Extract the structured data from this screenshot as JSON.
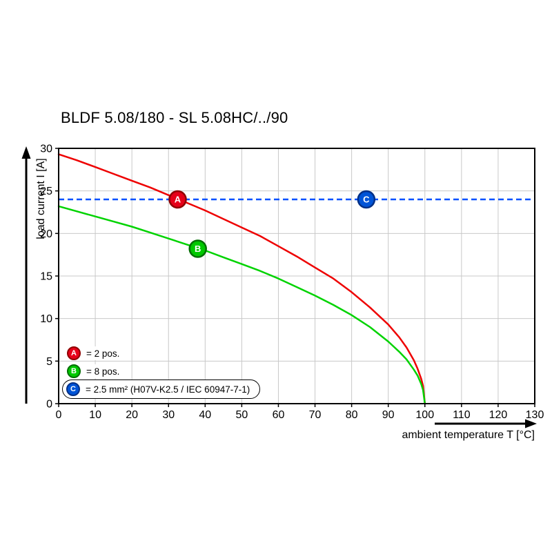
{
  "chart_data": {
    "type": "line",
    "title": "BLDF 5.08/180 - SL 5.08HC/../90",
    "xlabel": "ambient temperature T [°C]",
    "ylabel": "load current I [A]",
    "xlim": [
      0,
      130
    ],
    "ylim": [
      0,
      30
    ],
    "x_ticks": [
      0,
      10,
      20,
      30,
      40,
      50,
      60,
      70,
      80,
      90,
      100,
      110,
      120,
      130
    ],
    "y_ticks": [
      0,
      5,
      10,
      15,
      20,
      25,
      30
    ],
    "grid": true,
    "grid_color": "#c8c8c8",
    "axis_color": "#000000",
    "series": [
      {
        "id": "A",
        "label": "2 pos.",
        "kind": "curve",
        "color": "#ee0000",
        "points": [
          [
            0,
            29.3
          ],
          [
            5,
            28.6
          ],
          [
            10,
            27.8
          ],
          [
            15,
            27.0
          ],
          [
            20,
            26.2
          ],
          [
            25,
            25.4
          ],
          [
            30,
            24.5
          ],
          [
            35,
            23.6
          ],
          [
            40,
            22.7
          ],
          [
            45,
            21.7
          ],
          [
            50,
            20.7
          ],
          [
            55,
            19.7
          ],
          [
            60,
            18.5
          ],
          [
            65,
            17.3
          ],
          [
            70,
            16.0
          ],
          [
            75,
            14.7
          ],
          [
            80,
            13.1
          ],
          [
            85,
            11.3
          ],
          [
            90,
            9.3
          ],
          [
            93,
            7.8
          ],
          [
            95,
            6.6
          ],
          [
            97,
            5.1
          ],
          [
            98,
            4.1
          ],
          [
            99,
            2.9
          ],
          [
            99.5,
            2.1
          ],
          [
            100,
            0
          ]
        ],
        "marker": {
          "x": 32.5,
          "y": 24,
          "letter": "A",
          "fill": "#e60019",
          "stroke": "#8f0000"
        }
      },
      {
        "id": "B",
        "label": "8 pos.",
        "kind": "curve",
        "color": "#00d300",
        "points": [
          [
            0,
            23.2
          ],
          [
            5,
            22.6
          ],
          [
            10,
            22.0
          ],
          [
            15,
            21.4
          ],
          [
            20,
            20.8
          ],
          [
            25,
            20.1
          ],
          [
            30,
            19.4
          ],
          [
            35,
            18.7
          ],
          [
            40,
            18.0
          ],
          [
            45,
            17.2
          ],
          [
            50,
            16.4
          ],
          [
            55,
            15.6
          ],
          [
            60,
            14.7
          ],
          [
            65,
            13.7
          ],
          [
            70,
            12.7
          ],
          [
            75,
            11.6
          ],
          [
            80,
            10.4
          ],
          [
            85,
            9.0
          ],
          [
            90,
            7.3
          ],
          [
            93,
            6.1
          ],
          [
            95,
            5.2
          ],
          [
            97,
            4.0
          ],
          [
            98,
            3.3
          ],
          [
            99,
            2.3
          ],
          [
            99.5,
            1.6
          ],
          [
            100,
            0
          ]
        ],
        "marker": {
          "x": 38,
          "y": 18.2,
          "letter": "B",
          "fill": "#00c800",
          "stroke": "#006e00"
        }
      },
      {
        "id": "C",
        "label": "2.5 mm² (H07V-K2.5 / IEC 60947-7-1)",
        "kind": "hline",
        "y": 24,
        "dashed": true,
        "color": "#0050ff",
        "marker": {
          "x": 84,
          "y": 24,
          "letter": "C",
          "fill": "#0054d7",
          "stroke": "#002f86"
        }
      }
    ],
    "legend": [
      {
        "letter": "A",
        "text": "= 2 pos.",
        "fill": "#e60019",
        "stroke": "#8f0000",
        "boxed": false
      },
      {
        "letter": "B",
        "text": "= 8 pos.",
        "fill": "#00c800",
        "stroke": "#006e00",
        "boxed": false
      },
      {
        "letter": "C",
        "text": "= 2.5 mm² (H07V-K2.5 / IEC 60947-7-1)",
        "fill": "#0054d7",
        "stroke": "#002f86",
        "boxed": true
      }
    ]
  }
}
